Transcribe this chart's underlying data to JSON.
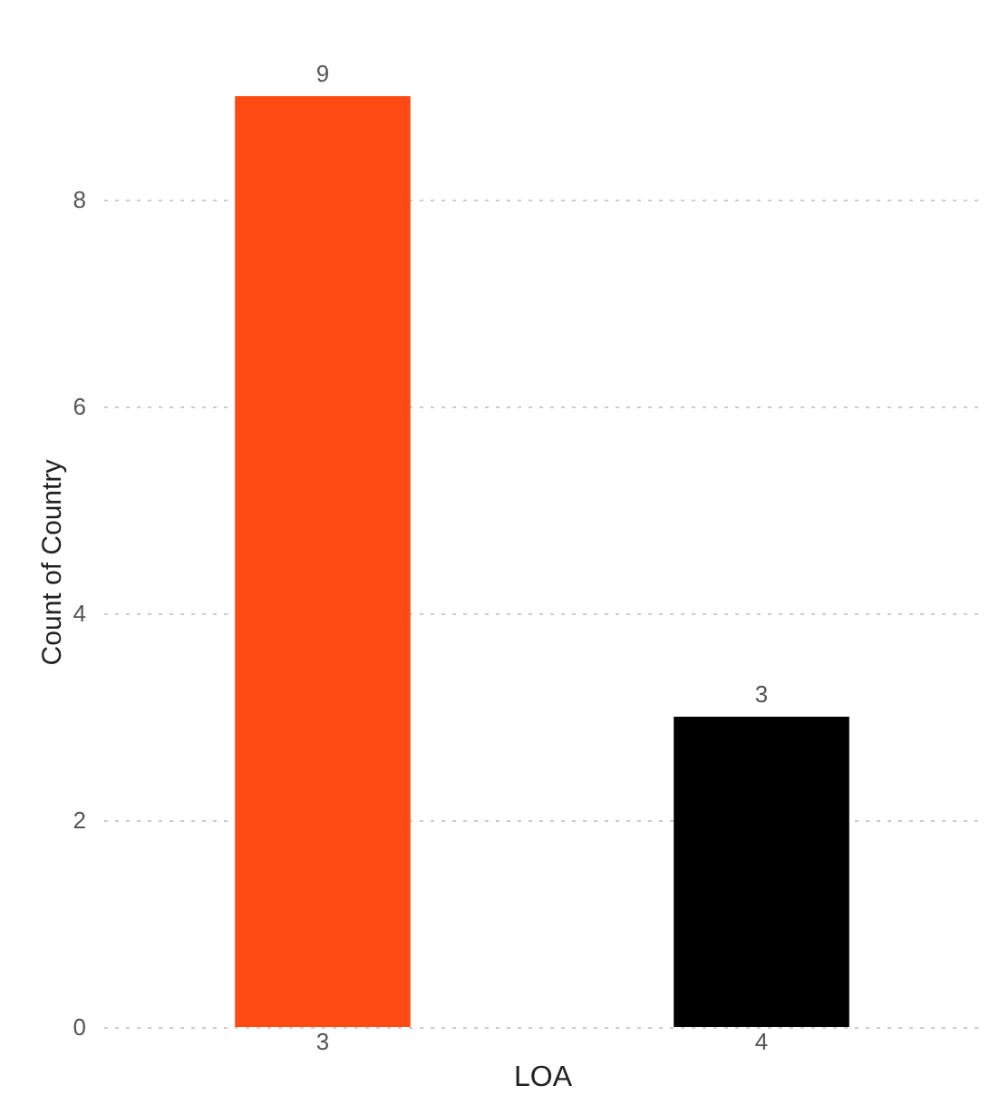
{
  "chart_data": {
    "type": "bar",
    "xlabel": "LOA",
    "ylabel": "Count of Country",
    "categories": [
      "3",
      "4"
    ],
    "series": [
      {
        "values": [
          9,
          3
        ],
        "colors": [
          "#ff4a14",
          "#000000"
        ]
      }
    ],
    "ylim": [
      0,
      9
    ],
    "yticks": [
      0,
      2,
      4,
      6,
      8
    ],
    "grid": "y",
    "data_labels": true
  }
}
